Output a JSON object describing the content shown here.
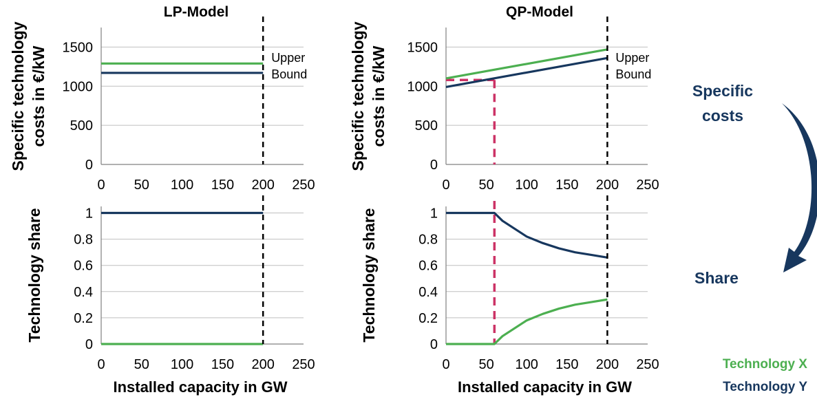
{
  "colors": {
    "technology_x": "#4caf50",
    "technology_y": "#17375e",
    "marker": "#cc3366",
    "grid": "#bfbfbf"
  },
  "side_labels": {
    "specific_costs_line1": "Specific",
    "specific_costs_line2": "costs",
    "share": "Share"
  },
  "legend": {
    "technology_x": "Technology X",
    "technology_y": "Technology Y"
  },
  "chart_data": [
    {
      "type": "line",
      "title": "LP-Model",
      "ylabel": [
        "Specific technology",
        "costs in €/kW"
      ],
      "xlabel": "",
      "xlim": [
        0,
        250
      ],
      "ylim": [
        0,
        1750
      ],
      "xticks": [
        0,
        50,
        100,
        150,
        200,
        250
      ],
      "yticks": [
        0,
        500,
        1000,
        1500
      ],
      "series": [
        {
          "key": "technology_x",
          "x": [
            0,
            200
          ],
          "y": [
            1290,
            1290
          ]
        },
        {
          "key": "technology_y",
          "x": [
            0,
            200
          ],
          "y": [
            1170,
            1170
          ]
        }
      ],
      "vline_x": 200,
      "annotation": [
        "Upper",
        "Bound"
      ]
    },
    {
      "type": "line",
      "title": "QP-Model",
      "ylabel": [
        "Specific technology",
        "costs in €/kW"
      ],
      "xlabel": "",
      "xlim": [
        0,
        250
      ],
      "ylim": [
        0,
        1750
      ],
      "xticks": [
        0,
        50,
        100,
        150,
        200,
        250
      ],
      "yticks": [
        0,
        500,
        1000,
        1500
      ],
      "series": [
        {
          "key": "technology_x",
          "x": [
            0,
            200
          ],
          "y": [
            1100,
            1470
          ]
        },
        {
          "key": "technology_y",
          "x": [
            0,
            200
          ],
          "y": [
            990,
            1360
          ]
        }
      ],
      "vline_x": 200,
      "marker_x": 60,
      "marker_y": 1080,
      "annotation": [
        "Upper",
        "Bound"
      ]
    },
    {
      "type": "line",
      "title": "",
      "ylabel": [
        "Technology share"
      ],
      "xlabel": "Installed capacity in GW",
      "xlim": [
        0,
        250
      ],
      "ylim": [
        0,
        1.05
      ],
      "xticks": [
        0,
        50,
        100,
        150,
        200,
        250
      ],
      "yticks": [
        0,
        0.2,
        0.4,
        0.6,
        0.8,
        1
      ],
      "ytick_labels": [
        "0",
        "0.2",
        "0.4",
        "0.6",
        "0.8",
        "1"
      ],
      "series": [
        {
          "key": "technology_y",
          "x": [
            0,
            200
          ],
          "y": [
            1,
            1
          ]
        },
        {
          "key": "technology_x",
          "x": [
            0,
            200
          ],
          "y": [
            0,
            0
          ]
        }
      ],
      "vline_x": 200
    },
    {
      "type": "line",
      "title": "",
      "ylabel": [
        "Technology share"
      ],
      "xlabel": "Installed capacity in GW",
      "xlim": [
        0,
        250
      ],
      "ylim": [
        0,
        1.05
      ],
      "xticks": [
        0,
        50,
        100,
        150,
        200,
        250
      ],
      "yticks": [
        0,
        0.2,
        0.4,
        0.6,
        0.8,
        1
      ],
      "ytick_labels": [
        "0",
        "0.2",
        "0.4",
        "0.6",
        "0.8",
        "1"
      ],
      "series": [
        {
          "key": "technology_y",
          "x": [
            0,
            60,
            70,
            80,
            90,
            100,
            120,
            140,
            160,
            180,
            200
          ],
          "y": [
            1,
            1,
            0.94,
            0.9,
            0.86,
            0.82,
            0.77,
            0.73,
            0.7,
            0.68,
            0.66
          ]
        },
        {
          "key": "technology_x",
          "x": [
            0,
            60,
            70,
            80,
            90,
            100,
            120,
            140,
            160,
            180,
            200
          ],
          "y": [
            0,
            0,
            0.06,
            0.1,
            0.14,
            0.18,
            0.23,
            0.27,
            0.3,
            0.32,
            0.34
          ]
        }
      ],
      "vline_x": 200,
      "marker_x": 60
    }
  ]
}
